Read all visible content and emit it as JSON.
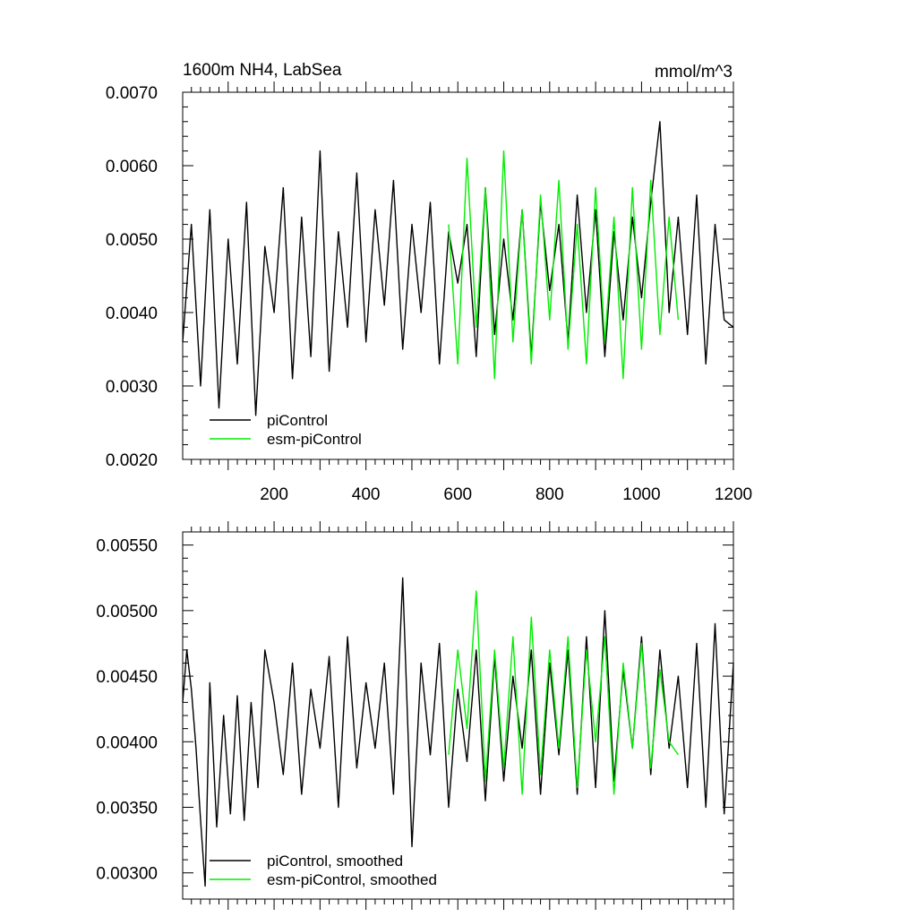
{
  "chart_data": [
    {
      "type": "line",
      "title": "1600m NH4, LabSea",
      "units": "mmol/m^3",
      "xlabel": "",
      "ylabel": "",
      "xlim": [
        1,
        1200
      ],
      "ylim": [
        0.002,
        0.007
      ],
      "xticks": [
        200,
        400,
        600,
        800,
        1000,
        1200
      ],
      "xtick_labels": [
        "200",
        "400",
        "600",
        "800",
        "1000",
        "1200"
      ],
      "yticks": [
        0.002,
        0.003,
        0.004,
        0.005,
        0.006,
        0.007
      ],
      "ytick_labels": [
        "0.0020",
        "0.0030",
        "0.0040",
        "0.0050",
        "0.0060",
        "0.0070"
      ],
      "legend_position": "bottom-left",
      "grid": false,
      "series": [
        {
          "name": "piControl",
          "color": "#000000",
          "x": [
            1,
            20,
            40,
            60,
            80,
            100,
            120,
            140,
            160,
            180,
            200,
            220,
            240,
            260,
            280,
            300,
            320,
            340,
            360,
            380,
            400,
            420,
            440,
            460,
            480,
            500,
            520,
            540,
            560,
            580,
            600,
            620,
            640,
            660,
            680,
            700,
            720,
            740,
            760,
            780,
            800,
            820,
            840,
            860,
            880,
            900,
            920,
            940,
            960,
            980,
            1000,
            1020,
            1040,
            1060,
            1080,
            1100,
            1120,
            1140,
            1160,
            1180,
            1200
          ],
          "y": [
            0.0036,
            0.0052,
            0.003,
            0.0054,
            0.0027,
            0.005,
            0.0033,
            0.0055,
            0.0026,
            0.0049,
            0.004,
            0.0057,
            0.0031,
            0.0053,
            0.0034,
            0.0062,
            0.0032,
            0.0051,
            0.0038,
            0.0059,
            0.0036,
            0.0054,
            0.0041,
            0.0058,
            0.0035,
            0.0052,
            0.004,
            0.0055,
            0.0033,
            0.0051,
            0.0044,
            0.0052,
            0.0034,
            0.0057,
            0.0037,
            0.005,
            0.0039,
            0.0054,
            0.0034,
            0.0055,
            0.0043,
            0.0052,
            0.0036,
            0.0056,
            0.004,
            0.0054,
            0.0034,
            0.0051,
            0.0039,
            0.0053,
            0.0042,
            0.0055,
            0.0066,
            0.004,
            0.0053,
            0.0037,
            0.0056,
            0.0033,
            0.0052,
            0.0039,
            0.0038
          ]
        },
        {
          "name": "esm-piControl",
          "color": "#00ee00",
          "x": [
            580,
            600,
            620,
            640,
            660,
            680,
            700,
            720,
            740,
            760,
            780,
            800,
            820,
            840,
            860,
            880,
            900,
            920,
            940,
            960,
            980,
            1000,
            1020,
            1040,
            1060,
            1080
          ],
          "y": [
            0.0052,
            0.0033,
            0.0061,
            0.0038,
            0.0057,
            0.0031,
            0.0062,
            0.0036,
            0.0054,
            0.0033,
            0.0056,
            0.0039,
            0.0058,
            0.0035,
            0.0052,
            0.0033,
            0.0057,
            0.0036,
            0.0053,
            0.0031,
            0.0057,
            0.0035,
            0.0058,
            0.0037,
            0.0053,
            0.0039
          ]
        }
      ]
    },
    {
      "type": "line",
      "title": "",
      "xlabel": "",
      "ylabel": "",
      "xlim": [
        1,
        1200
      ],
      "ylim": [
        0.0028,
        0.0056
      ],
      "yticks": [
        0.003,
        0.0035,
        0.004,
        0.0045,
        0.005,
        0.0055
      ],
      "ytick_labels": [
        "0.00300",
        "0.00350",
        "0.00400",
        "0.00450",
        "0.00500",
        "0.00550"
      ],
      "legend_position": "bottom-left",
      "grid": false,
      "series": [
        {
          "name": "piControl, smoothed",
          "color": "#000000",
          "x": [
            1,
            10,
            20,
            30,
            40,
            50,
            60,
            75,
            90,
            105,
            120,
            135,
            150,
            165,
            180,
            200,
            220,
            240,
            260,
            280,
            300,
            320,
            340,
            360,
            380,
            400,
            420,
            440,
            460,
            480,
            500,
            520,
            540,
            560,
            580,
            600,
            620,
            640,
            660,
            680,
            700,
            720,
            740,
            760,
            780,
            800,
            820,
            840,
            860,
            880,
            900,
            920,
            940,
            960,
            980,
            1000,
            1020,
            1040,
            1060,
            1080,
            1100,
            1120,
            1140,
            1160,
            1180,
            1200
          ],
          "y": [
            0.0043,
            0.0047,
            0.0044,
            0.00395,
            0.0034,
            0.0029,
            0.00445,
            0.00335,
            0.0042,
            0.00345,
            0.00435,
            0.0034,
            0.0043,
            0.00365,
            0.0047,
            0.0043,
            0.00375,
            0.0046,
            0.0036,
            0.0044,
            0.00395,
            0.00465,
            0.0035,
            0.0048,
            0.0038,
            0.00445,
            0.00395,
            0.0046,
            0.0036,
            0.00525,
            0.0032,
            0.0046,
            0.0039,
            0.00475,
            0.0035,
            0.0044,
            0.00385,
            0.0047,
            0.00355,
            0.00465,
            0.0037,
            0.0045,
            0.00395,
            0.0047,
            0.0036,
            0.0046,
            0.0039,
            0.0047,
            0.0036,
            0.0048,
            0.00365,
            0.005,
            0.0037,
            0.00455,
            0.00395,
            0.0048,
            0.00375,
            0.0047,
            0.00395,
            0.0045,
            0.00365,
            0.00475,
            0.0035,
            0.0049,
            0.00345,
            0.0046
          ]
        },
        {
          "name": "esm-piControl, smoothed",
          "color": "#00ee00",
          "x": [
            580,
            600,
            620,
            640,
            660,
            680,
            700,
            720,
            740,
            760,
            780,
            800,
            820,
            840,
            860,
            880,
            900,
            920,
            940,
            960,
            980,
            1000,
            1020,
            1040,
            1060,
            1080
          ],
          "y": [
            0.0039,
            0.0047,
            0.0041,
            0.00515,
            0.0037,
            0.0047,
            0.0038,
            0.0048,
            0.0036,
            0.00495,
            0.00375,
            0.0047,
            0.00395,
            0.0048,
            0.00365,
            0.0047,
            0.004,
            0.0048,
            0.0036,
            0.0046,
            0.00395,
            0.00475,
            0.0038,
            0.00455,
            0.004,
            0.0039
          ]
        }
      ]
    }
  ]
}
